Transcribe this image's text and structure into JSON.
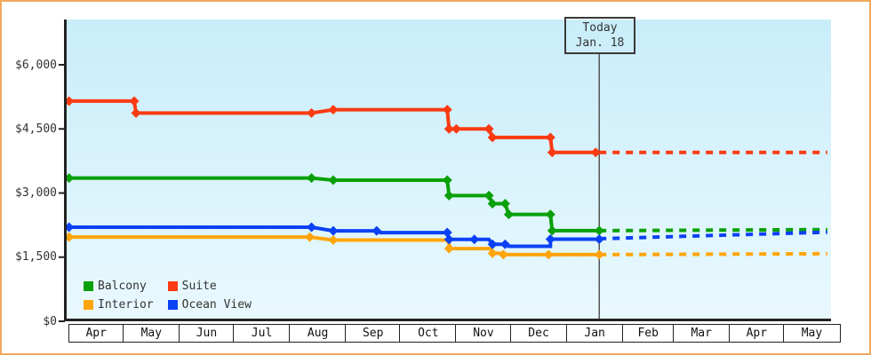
{
  "window": {
    "border_color": "#f0a85e",
    "plot_bg_top": "#c9edfa",
    "plot_bg_bottom": "#e9f9fe"
  },
  "today_flag": {
    "line1": "Today",
    "line2": "Jan. 18"
  },
  "legend": {
    "items": [
      {
        "label": "Balcony",
        "color": "#09a009"
      },
      {
        "label": "Suite",
        "color": "#fb3a12"
      },
      {
        "label": "Interior",
        "color": "#ffa50a"
      },
      {
        "label": "Ocean View",
        "color": "#0b41f5"
      }
    ]
  },
  "chart_data": {
    "type": "line",
    "title": "",
    "y_ticks": [
      {
        "label": "$0",
        "value": 0
      },
      {
        "label": "$1,500",
        "value": 1500
      },
      {
        "label": "$3,000",
        "value": 3000
      },
      {
        "label": "$4,500",
        "value": 4500
      },
      {
        "label": "$6,000",
        "value": 6000
      }
    ],
    "y_axis_range": [
      0,
      7050
    ],
    "months": [
      {
        "label": "Apr",
        "days": 30
      },
      {
        "label": "May",
        "days": 31
      },
      {
        "label": "Jun",
        "days": 30
      },
      {
        "label": "Jul",
        "days": 31
      },
      {
        "label": "Aug",
        "days": 31
      },
      {
        "label": "Sep",
        "days": 30
      },
      {
        "label": "Oct",
        "days": 31
      },
      {
        "label": "Nov",
        "days": 30
      },
      {
        "label": "Dec",
        "days": 31
      },
      {
        "label": "Jan",
        "days": 31
      },
      {
        "label": "Feb",
        "days": 28
      },
      {
        "label": "Mar",
        "days": 31
      },
      {
        "label": "Apr",
        "days": 30
      },
      {
        "label": "May",
        "days": 31
      }
    ],
    "today": {
      "day": 293,
      "date_label": "Jan. 18"
    },
    "series": [
      {
        "name": "Suite",
        "color": "#fb3a12",
        "solid": [
          [
            0,
            5150
          ],
          [
            36,
            5150
          ],
          [
            37,
            4870
          ],
          [
            134,
            4870
          ],
          [
            146,
            4950
          ],
          [
            209,
            4950
          ],
          [
            210,
            4500
          ],
          [
            214,
            4500
          ],
          [
            232,
            4500
          ],
          [
            234,
            4300
          ],
          [
            266,
            4300
          ],
          [
            267,
            3950
          ],
          [
            293,
            3950
          ]
        ],
        "dotted": [
          [
            293,
            3950
          ],
          [
            419,
            3950
          ]
        ],
        "markers": [
          [
            0,
            5150
          ],
          [
            36,
            5150
          ],
          [
            37,
            4870
          ],
          [
            134,
            4870
          ],
          [
            146,
            4950
          ],
          [
            209,
            4950
          ],
          [
            210,
            4500
          ],
          [
            214,
            4500
          ],
          [
            232,
            4500
          ],
          [
            234,
            4300
          ],
          [
            266,
            4300
          ],
          [
            267,
            3950
          ],
          [
            291,
            3950
          ]
        ]
      },
      {
        "name": "Balcony",
        "color": "#09a009",
        "solid": [
          [
            0,
            3350
          ],
          [
            134,
            3350
          ],
          [
            146,
            3300
          ],
          [
            209,
            3300
          ],
          [
            210,
            2940
          ],
          [
            232,
            2940
          ],
          [
            234,
            2750
          ],
          [
            241,
            2750
          ],
          [
            243,
            2500
          ],
          [
            266,
            2500
          ],
          [
            267,
            2120
          ],
          [
            293,
            2120
          ]
        ],
        "dotted": [
          [
            293,
            2120
          ],
          [
            419,
            2145
          ]
        ],
        "markers": [
          [
            0,
            3350
          ],
          [
            134,
            3350
          ],
          [
            146,
            3300
          ],
          [
            209,
            3300
          ],
          [
            210,
            2940
          ],
          [
            232,
            2940
          ],
          [
            234,
            2750
          ],
          [
            241,
            2750
          ],
          [
            243,
            2500
          ],
          [
            266,
            2500
          ],
          [
            267,
            2120
          ],
          [
            293,
            2120
          ]
        ]
      },
      {
        "name": "Interior",
        "color": "#ffa50a",
        "solid": [
          [
            0,
            1970
          ],
          [
            133,
            1970
          ],
          [
            146,
            1900
          ],
          [
            209,
            1900
          ],
          [
            211,
            1700
          ],
          [
            233,
            1700
          ],
          [
            234,
            1590
          ],
          [
            240,
            1590
          ],
          [
            242,
            1560
          ],
          [
            293,
            1560
          ]
        ],
        "dotted": [
          [
            293,
            1560
          ],
          [
            419,
            1580
          ]
        ],
        "markers": [
          [
            0,
            1970
          ],
          [
            133,
            1970
          ],
          [
            146,
            1900
          ],
          [
            210,
            1700
          ],
          [
            234,
            1590
          ],
          [
            240,
            1560
          ],
          [
            265,
            1560
          ],
          [
            293,
            1560
          ]
        ]
      },
      {
        "name": "Ocean View",
        "color": "#0b41f5",
        "solid": [
          [
            0,
            2200
          ],
          [
            134,
            2200
          ],
          [
            146,
            2115
          ],
          [
            170,
            2115
          ],
          [
            172,
            2075
          ],
          [
            209,
            2075
          ],
          [
            210,
            1915
          ],
          [
            232,
            1915
          ],
          [
            234,
            1800
          ],
          [
            241,
            1800
          ],
          [
            243,
            1755
          ],
          [
            266,
            1755
          ],
          [
            266,
            1920
          ],
          [
            293,
            1920
          ]
        ],
        "dotted": [
          [
            293,
            1930
          ],
          [
            419,
            2085
          ]
        ],
        "markers": [
          [
            0,
            2200
          ],
          [
            134,
            2200
          ],
          [
            146,
            2115
          ],
          [
            170,
            2115
          ],
          [
            209,
            2075
          ],
          [
            210,
            1915
          ],
          [
            224,
            1915
          ],
          [
            234,
            1800
          ],
          [
            241,
            1800
          ],
          [
            266,
            1920
          ],
          [
            293,
            1920
          ]
        ]
      }
    ]
  }
}
